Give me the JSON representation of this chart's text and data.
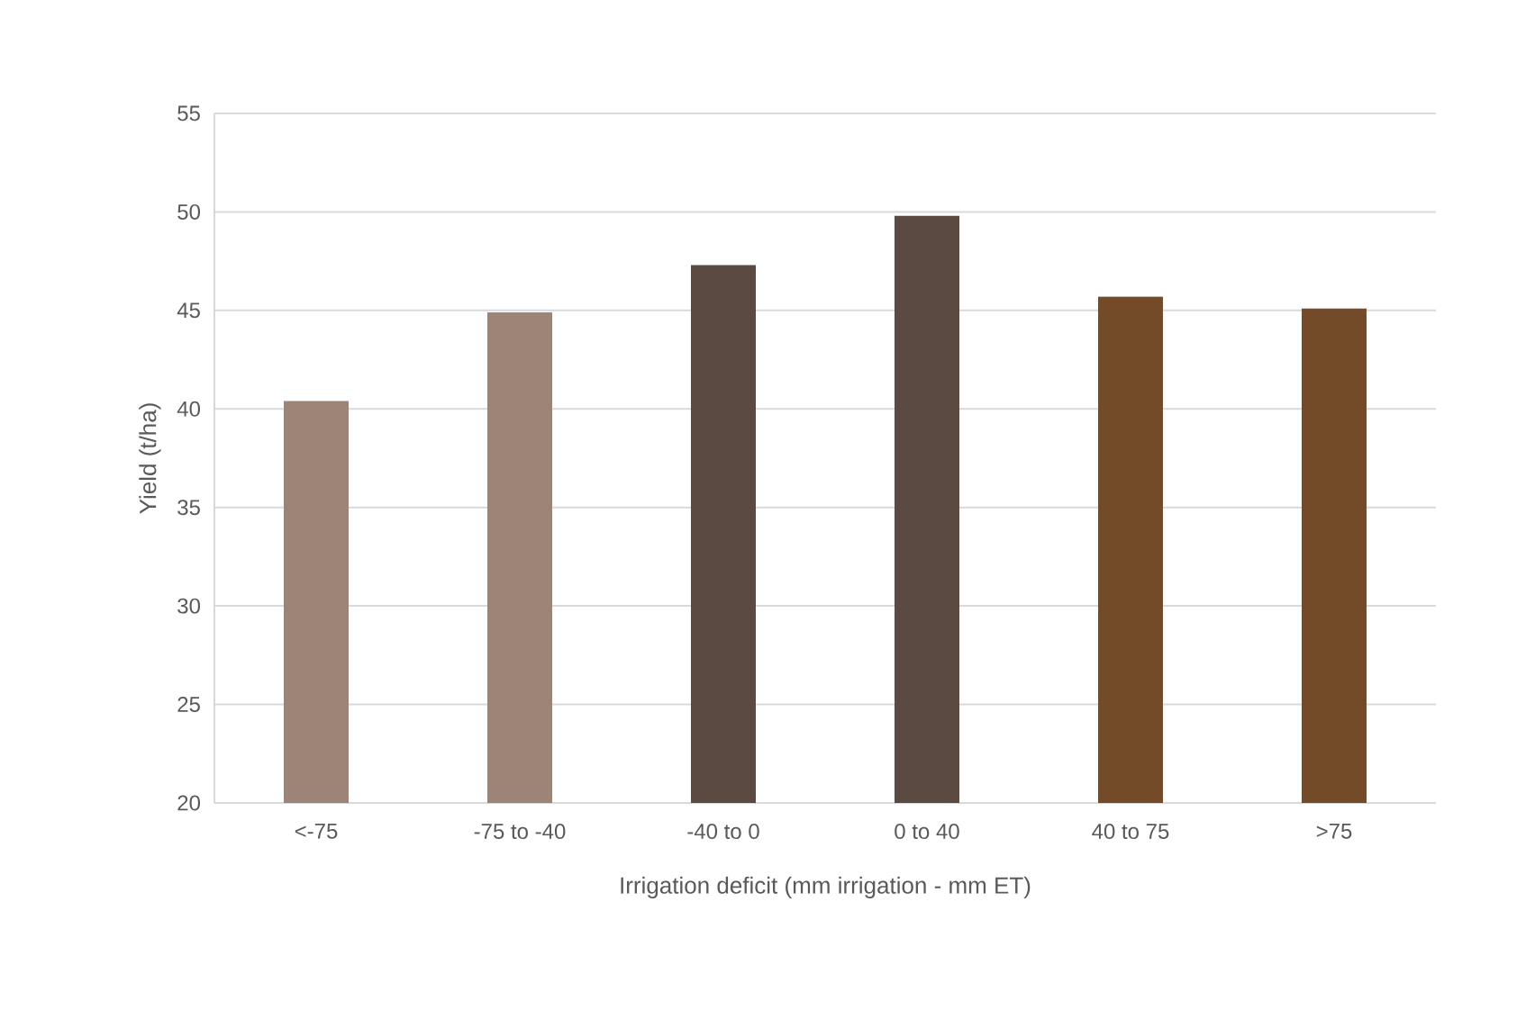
{
  "chart_data": {
    "type": "bar",
    "xlabel": "Irrigation deficit (mm irrigation - mm ET)",
    "ylabel": "Yield (t/ha)",
    "categories": [
      "<-75",
      "-75 to -40",
      "-40 to 0",
      "0 to 40",
      "40 to 75",
      ">75"
    ],
    "values": [
      40.4,
      44.9,
      47.3,
      49.8,
      45.7,
      45.1
    ],
    "colors": [
      "#9c8576",
      "#9c8576",
      "#5b4a41",
      "#5b4a41",
      "#744b28",
      "#744b28"
    ],
    "ylim": [
      20,
      55
    ],
    "yticks": [
      20,
      25,
      30,
      35,
      40,
      45,
      50,
      55
    ],
    "grid": "y"
  }
}
